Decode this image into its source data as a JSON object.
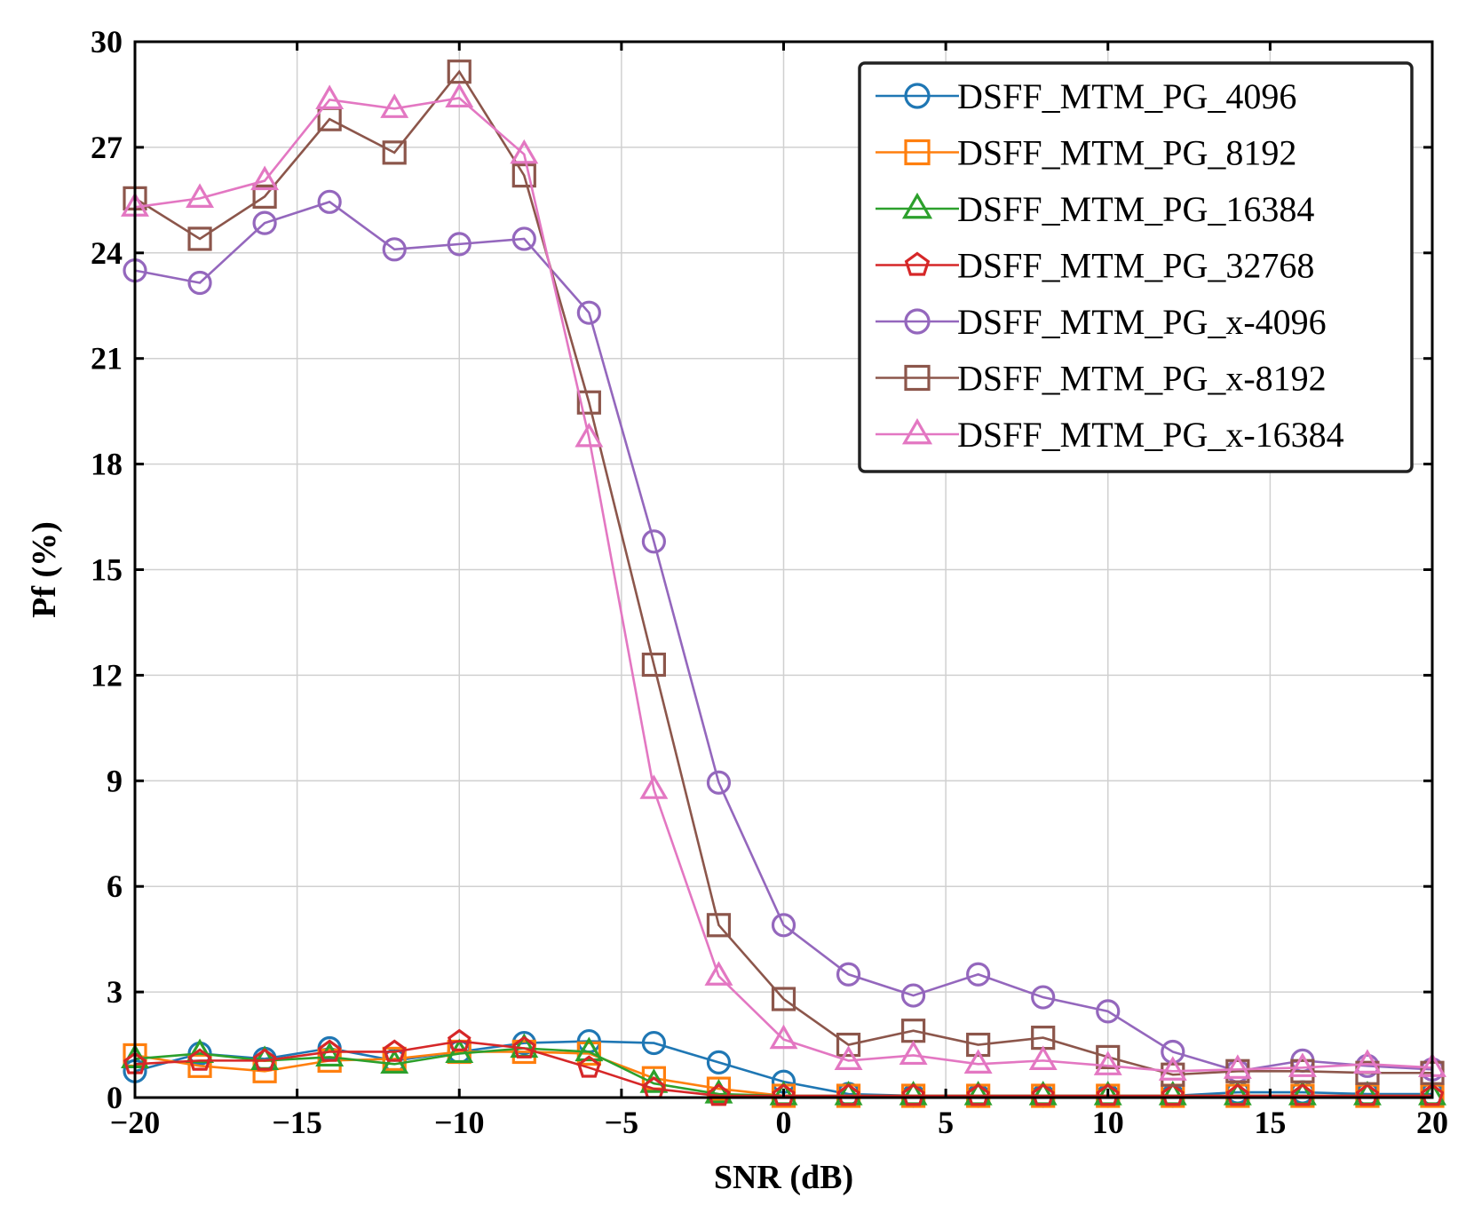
{
  "chart_data": {
    "type": "line",
    "title": "",
    "xlabel": "SNR (dB)",
    "ylabel": "Pf  (%)",
    "xlim": [
      -20,
      20
    ],
    "ylim": [
      0,
      30
    ],
    "xticks": [
      -20,
      -15,
      -10,
      -5,
      0,
      5,
      10,
      15,
      20
    ],
    "xtick_labels": [
      "−20",
      "−15",
      "−10",
      "−5",
      "0",
      "5",
      "10",
      "15",
      "20"
    ],
    "yticks": [
      0,
      3,
      6,
      9,
      12,
      15,
      18,
      21,
      24,
      27,
      30
    ],
    "ytick_labels": [
      "0",
      "3",
      "6",
      "9",
      "12",
      "15",
      "18",
      "21",
      "24",
      "27",
      "30"
    ],
    "grid": true,
    "legend_position": "top-right",
    "x": [
      -20,
      -18,
      -16,
      -14,
      -12,
      -10,
      -8,
      -6,
      -4,
      -2,
      0,
      2,
      4,
      6,
      8,
      10,
      12,
      14,
      16,
      18,
      20
    ],
    "series": [
      {
        "name": "DSFF_MTM_PG_4096",
        "color": "#1f77b4",
        "marker": "circle",
        "values": [
          0.75,
          1.25,
          1.1,
          1.4,
          1.05,
          1.3,
          1.55,
          1.6,
          1.55,
          1.0,
          0.45,
          0.1,
          0.05,
          0.05,
          0.05,
          0.05,
          0.05,
          0.15,
          0.15,
          0.1,
          0.1
        ]
      },
      {
        "name": "DSFF_MTM_PG_8192",
        "color": "#ff7f0e",
        "marker": "square",
        "values": [
          1.2,
          0.9,
          0.75,
          1.05,
          1.1,
          1.3,
          1.3,
          1.25,
          0.55,
          0.25,
          0.05,
          0.05,
          0.05,
          0.05,
          0.05,
          0.05,
          0.05,
          0.05,
          0.05,
          0.05,
          0.05
        ]
      },
      {
        "name": "DSFF_MTM_PG_16384",
        "color": "#2ca02c",
        "marker": "triangle",
        "values": [
          1.1,
          1.25,
          1.05,
          1.15,
          0.95,
          1.25,
          1.4,
          1.3,
          0.4,
          0.1,
          0.05,
          0.05,
          0.05,
          0.05,
          0.05,
          0.05,
          0.05,
          0.05,
          0.05,
          0.05,
          0.05
        ]
      },
      {
        "name": "DSFF_MTM_PG_32768",
        "color": "#d62728",
        "marker": "pentagon",
        "values": [
          0.95,
          1.05,
          1.05,
          1.3,
          1.3,
          1.6,
          1.4,
          0.85,
          0.25,
          0.05,
          0.05,
          0.05,
          0.05,
          0.05,
          0.05,
          0.05,
          0.05,
          0.05,
          0.05,
          0.05,
          0.05
        ]
      },
      {
        "name": "DSFF_MTM_PG_x-4096",
        "color": "#9467bd",
        "marker": "circle",
        "values": [
          23.5,
          23.15,
          24.85,
          25.45,
          24.1,
          24.25,
          24.4,
          22.3,
          15.8,
          8.95,
          4.9,
          3.5,
          2.9,
          3.5,
          2.85,
          2.45,
          1.3,
          0.75,
          1.05,
          0.9,
          0.8
        ]
      },
      {
        "name": "DSFF_MTM_PG_x-8192",
        "color": "#8c564b",
        "marker": "square",
        "values": [
          25.55,
          24.4,
          25.6,
          27.8,
          26.85,
          29.15,
          26.2,
          19.75,
          12.3,
          4.9,
          2.8,
          1.5,
          1.9,
          1.5,
          1.7,
          1.15,
          0.65,
          0.75,
          0.75,
          0.7,
          0.7
        ]
      },
      {
        "name": "DSFF_MTM_PG_x-16384",
        "color": "#e377c2",
        "marker": "triangle",
        "values": [
          25.3,
          25.55,
          26.05,
          28.35,
          28.1,
          28.4,
          26.8,
          18.75,
          8.75,
          3.45,
          1.65,
          1.05,
          1.2,
          0.95,
          1.05,
          0.9,
          0.75,
          0.8,
          0.85,
          0.95,
          0.85
        ]
      }
    ]
  }
}
